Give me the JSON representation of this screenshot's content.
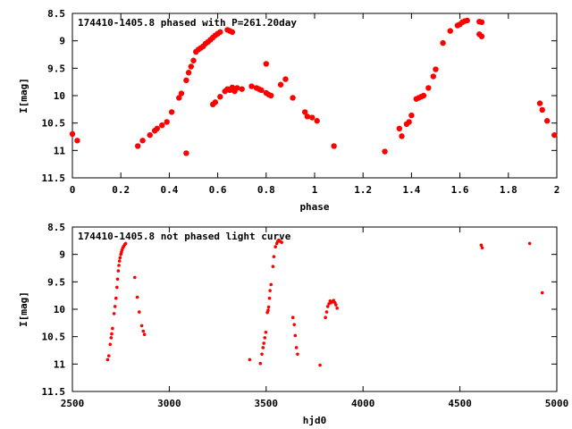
{
  "chart_data": [
    {
      "type": "scatter",
      "title": "174410-1405.8 phased with P=261.20day",
      "xlabel": "phase",
      "ylabel": "I[mag]",
      "xlim": [
        0,
        2
      ],
      "ylim": [
        8.5,
        11.5
      ],
      "y_inverted": true,
      "xticks": [
        0,
        0.2,
        0.4,
        0.6,
        0.8,
        1,
        1.2,
        1.4,
        1.6,
        1.8,
        2
      ],
      "xtick_labels": [
        "0",
        "0.2",
        "0.4",
        "0.6",
        "0.8",
        "1",
        "1.2",
        "1.4",
        "1.6",
        "1.8",
        "2"
      ],
      "yticks": [
        8.5,
        9,
        9.5,
        10,
        10.5,
        11,
        11.5
      ],
      "ytick_labels": [
        "8.5",
        "9",
        "9.5",
        "10",
        "10.5",
        "11",
        "11.5"
      ],
      "grid": false,
      "marker_color": "#ff0000",
      "points": [
        [
          0.0,
          10.7
        ],
        [
          0.02,
          10.82
        ],
        [
          0.27,
          10.92
        ],
        [
          0.29,
          10.82
        ],
        [
          0.32,
          10.72
        ],
        [
          0.34,
          10.64
        ],
        [
          0.35,
          10.6
        ],
        [
          0.37,
          10.54
        ],
        [
          0.39,
          10.48
        ],
        [
          0.41,
          10.3
        ],
        [
          0.44,
          10.04
        ],
        [
          0.45,
          9.96
        ],
        [
          0.47,
          11.05
        ],
        [
          0.47,
          9.72
        ],
        [
          0.48,
          9.58
        ],
        [
          0.49,
          9.47
        ],
        [
          0.5,
          9.36
        ],
        [
          0.51,
          9.2
        ],
        [
          0.52,
          9.16
        ],
        [
          0.53,
          9.13
        ],
        [
          0.54,
          9.1
        ],
        [
          0.55,
          9.05
        ],
        [
          0.56,
          9.02
        ],
        [
          0.57,
          8.98
        ],
        [
          0.58,
          8.94
        ],
        [
          0.59,
          8.9
        ],
        [
          0.6,
          8.87
        ],
        [
          0.61,
          8.84
        ],
        [
          0.58,
          10.16
        ],
        [
          0.59,
          10.12
        ],
        [
          0.61,
          10.02
        ],
        [
          0.63,
          9.92
        ],
        [
          0.64,
          9.88
        ],
        [
          0.65,
          9.9
        ],
        [
          0.66,
          9.85
        ],
        [
          0.67,
          9.92
        ],
        [
          0.68,
          9.86
        ],
        [
          0.7,
          9.88
        ],
        [
          0.64,
          8.8
        ],
        [
          0.65,
          8.82
        ],
        [
          0.66,
          8.84
        ],
        [
          0.74,
          9.83
        ],
        [
          0.76,
          9.86
        ],
        [
          0.77,
          9.88
        ],
        [
          0.78,
          9.9
        ],
        [
          0.8,
          9.95
        ],
        [
          0.8,
          9.42
        ],
        [
          0.81,
          9.98
        ],
        [
          0.82,
          10.0
        ],
        [
          0.86,
          9.8
        ],
        [
          0.88,
          9.7
        ],
        [
          0.91,
          10.04
        ],
        [
          0.96,
          10.3
        ],
        [
          0.97,
          10.38
        ],
        [
          0.99,
          10.4
        ],
        [
          1.01,
          10.46
        ],
        [
          1.08,
          10.92
        ],
        [
          1.29,
          11.02
        ],
        [
          1.35,
          10.6
        ],
        [
          1.36,
          10.74
        ],
        [
          1.38,
          10.52
        ],
        [
          1.39,
          10.48
        ],
        [
          1.4,
          10.36
        ],
        [
          1.42,
          10.06
        ],
        [
          1.43,
          10.04
        ],
        [
          1.44,
          10.02
        ],
        [
          1.45,
          10.0
        ],
        [
          1.47,
          9.86
        ],
        [
          1.49,
          9.65
        ],
        [
          1.5,
          9.52
        ],
        [
          1.53,
          9.04
        ],
        [
          1.56,
          8.82
        ],
        [
          1.59,
          8.72
        ],
        [
          1.6,
          8.7
        ],
        [
          1.61,
          8.66
        ],
        [
          1.62,
          8.64
        ],
        [
          1.63,
          8.63
        ],
        [
          1.68,
          8.65
        ],
        [
          1.69,
          8.66
        ],
        [
          1.68,
          8.88
        ],
        [
          1.69,
          8.92
        ],
        [
          1.93,
          10.14
        ],
        [
          1.94,
          10.26
        ],
        [
          1.96,
          10.46
        ],
        [
          1.99,
          10.72
        ]
      ]
    },
    {
      "type": "scatter",
      "title": "174410-1405.8 not phased light curve",
      "xlabel": "hjd0",
      "ylabel": "I[mag]",
      "xlim": [
        2500,
        5000
      ],
      "ylim": [
        8.5,
        11.5
      ],
      "y_inverted": true,
      "xticks": [
        2500,
        3000,
        3500,
        4000,
        4500,
        5000
      ],
      "xtick_labels": [
        "2500",
        "3000",
        "3500",
        "4000",
        "4500",
        "5000"
      ],
      "yticks": [
        8.5,
        9,
        9.5,
        10,
        10.5,
        11,
        11.5
      ],
      "ytick_labels": [
        "8.5",
        "9",
        "9.5",
        "10",
        "10.5",
        "11",
        "11.5"
      ],
      "grid": false,
      "marker_color": "#ff0000",
      "points": [
        [
          2682,
          10.92
        ],
        [
          2688,
          10.85
        ],
        [
          2695,
          10.64
        ],
        [
          2700,
          10.52
        ],
        [
          2703,
          10.45
        ],
        [
          2707,
          10.35
        ],
        [
          2715,
          10.08
        ],
        [
          2720,
          9.95
        ],
        [
          2725,
          9.8
        ],
        [
          2730,
          9.6
        ],
        [
          2733,
          9.45
        ],
        [
          2737,
          9.3
        ],
        [
          2740,
          9.2
        ],
        [
          2743,
          9.12
        ],
        [
          2746,
          9.06
        ],
        [
          2750,
          9.0
        ],
        [
          2753,
          8.96
        ],
        [
          2756,
          8.92
        ],
        [
          2760,
          8.88
        ],
        [
          2765,
          8.85
        ],
        [
          2770,
          8.82
        ],
        [
          2775,
          8.8
        ],
        [
          2822,
          9.42
        ],
        [
          2835,
          9.78
        ],
        [
          2845,
          10.05
        ],
        [
          2858,
          10.3
        ],
        [
          2866,
          10.4
        ],
        [
          2872,
          10.46
        ],
        [
          3415,
          10.92
        ],
        [
          3470,
          10.99
        ],
        [
          3478,
          10.82
        ],
        [
          3484,
          10.7
        ],
        [
          3488,
          10.62
        ],
        [
          3493,
          10.52
        ],
        [
          3498,
          10.42
        ],
        [
          3506,
          10.06
        ],
        [
          3510,
          10.02
        ],
        [
          3513,
          9.96
        ],
        [
          3517,
          9.8
        ],
        [
          3520,
          9.66
        ],
        [
          3525,
          9.55
        ],
        [
          3535,
          9.22
        ],
        [
          3540,
          9.04
        ],
        [
          3548,
          8.86
        ],
        [
          3555,
          8.8
        ],
        [
          3560,
          8.76
        ],
        [
          3565,
          8.74
        ],
        [
          3572,
          8.76
        ],
        [
          3580,
          8.78
        ],
        [
          3638,
          10.15
        ],
        [
          3645,
          10.28
        ],
        [
          3650,
          10.48
        ],
        [
          3656,
          10.7
        ],
        [
          3662,
          10.82
        ],
        [
          3778,
          11.02
        ],
        [
          3806,
          10.15
        ],
        [
          3812,
          10.05
        ],
        [
          3818,
          9.95
        ],
        [
          3824,
          9.9
        ],
        [
          3830,
          9.85
        ],
        [
          3836,
          9.88
        ],
        [
          3842,
          9.86
        ],
        [
          3848,
          9.84
        ],
        [
          3855,
          9.88
        ],
        [
          3860,
          9.92
        ],
        [
          3866,
          9.98
        ],
        [
          4610,
          8.83
        ],
        [
          4615,
          8.88
        ],
        [
          4860,
          8.8
        ],
        [
          4925,
          9.7
        ]
      ]
    }
  ]
}
